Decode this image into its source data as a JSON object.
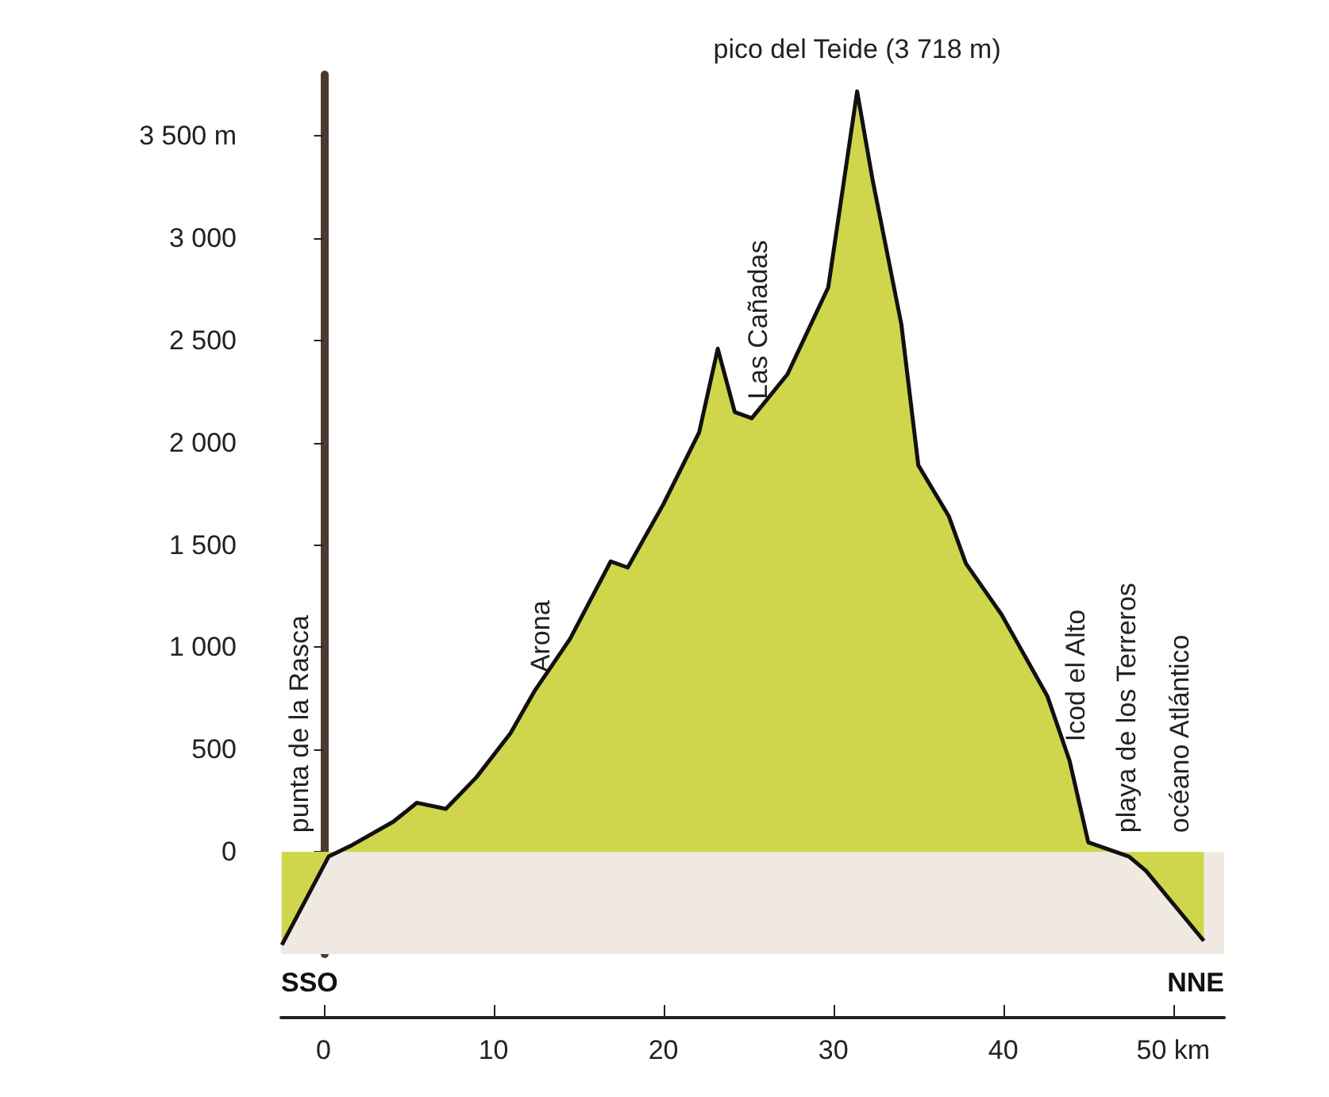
{
  "chart_data": {
    "type": "area",
    "color": "#cfd64c",
    "x": [
      -2.45,
      0.3,
      1.7,
      4.1,
      5.5,
      7.2,
      9.0,
      11.0,
      12.4,
      14.5,
      16.9,
      17.9,
      20.0,
      22.1,
      23.2,
      24.2,
      25.2,
      27.3,
      29.7,
      31.4,
      32.3,
      34.0,
      35.0,
      36.8,
      37.8,
      39.9,
      42.6,
      43.9,
      45.0,
      47.4,
      48.4,
      51.8
    ],
    "values": [
      -455,
      -23,
      34,
      147,
      240,
      210,
      365,
      580,
      784,
      1040,
      1420,
      1390,
      1700,
      2050,
      2460,
      2150,
      2120,
      2335,
      2760,
      3718,
      3290,
      2580,
      1890,
      1640,
      1410,
      1160,
      760,
      446,
      47,
      -23,
      -93,
      -435
    ],
    "xlim": [
      -2.5,
      53
    ],
    "xticks": [
      0,
      10,
      20,
      30,
      40,
      {
        "value": 50,
        "label": "50 km"
      }
    ],
    "ylim": [
      -500,
      3800
    ],
    "yticks": [
      0,
      {
        "value": 500,
        "label": "500"
      },
      {
        "value": 1000,
        "label": "1 000"
      },
      {
        "value": 1500,
        "label": "1 500"
      },
      {
        "value": 2000,
        "label": "2 000"
      },
      {
        "value": 2500,
        "label": "2 500"
      },
      {
        "value": 3000,
        "label": "3 000"
      },
      {
        "value": 3500,
        "label": "3 500 m"
      }
    ],
    "bands": [
      {
        "axis": "y",
        "from": -500,
        "to": 0,
        "color": "#efe9e2"
      }
    ],
    "annotations": [
      {
        "text": "pico del Teide (3 718 m)",
        "x": 31.4,
        "y": 3718
      },
      {
        "text": "punta de la Rasca",
        "x": -1.8,
        "y": 0
      },
      {
        "text": "Arona",
        "x": 12.4,
        "y": 784
      },
      {
        "text": "Las Cañadas",
        "x": 25.2,
        "y": 2120
      },
      {
        "text": "Icod el Alto",
        "x": 43.9,
        "y": 446
      },
      {
        "text": "playa de los Terreros",
        "x": 46.9,
        "y": 0
      },
      {
        "text": "océano Atlántico",
        "x": 50,
        "y": 0
      },
      "SSO",
      "NNE"
    ],
    "marker": "none"
  }
}
